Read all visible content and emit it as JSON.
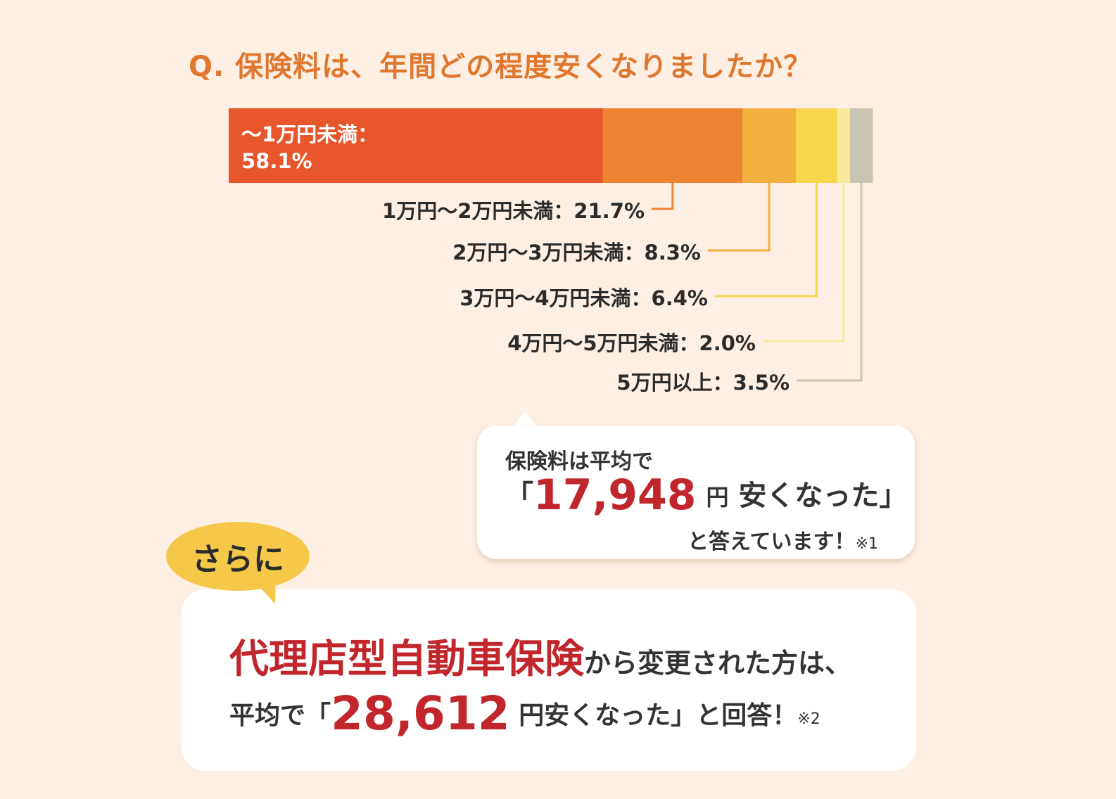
{
  "question": "Q. 保険料は、年間どの程度安くなりましたか？",
  "chart_data": {
    "type": "bar",
    "orientation": "horizontal-stacked",
    "categories": [
      "～1万円未満",
      "1万円～2万円未満",
      "2万円～3万円未満",
      "3万円～4万円未満",
      "4万円～5万円未満",
      "5万円以上"
    ],
    "values": [
      58.1,
      21.7,
      8.3,
      6.4,
      2.0,
      3.5
    ],
    "labels": [
      "～1万円未満：",
      "1万円～2万円未満：21.7%",
      "2万円～3万円未満：8.3%",
      "3万円～4万円未満：6.4%",
      "4万円～5万円未満：2.0%",
      "5万円以上：3.5%"
    ],
    "first_value_label": "58.1%",
    "colors": [
      "#e8562b",
      "#ee8332",
      "#f2b13f",
      "#f6d64d",
      "#f8e89a",
      "#cbc5b5"
    ]
  },
  "bubble1": {
    "line1": "保険料は平均で",
    "open_quote": "「",
    "amount": "17,948",
    "yen": "円",
    "phrase": "安くなった",
    "close_quote": "」",
    "line3": "と答えています！",
    "note": "※1"
  },
  "bubble2": {
    "badge": "さらに",
    "highlight": "代理店型自動車保険",
    "line1_rest": "から変更された方は、",
    "prefix": "平均で「",
    "amount": "28,612",
    "suffix": "円安くなった」と回答！",
    "note": "※2"
  }
}
